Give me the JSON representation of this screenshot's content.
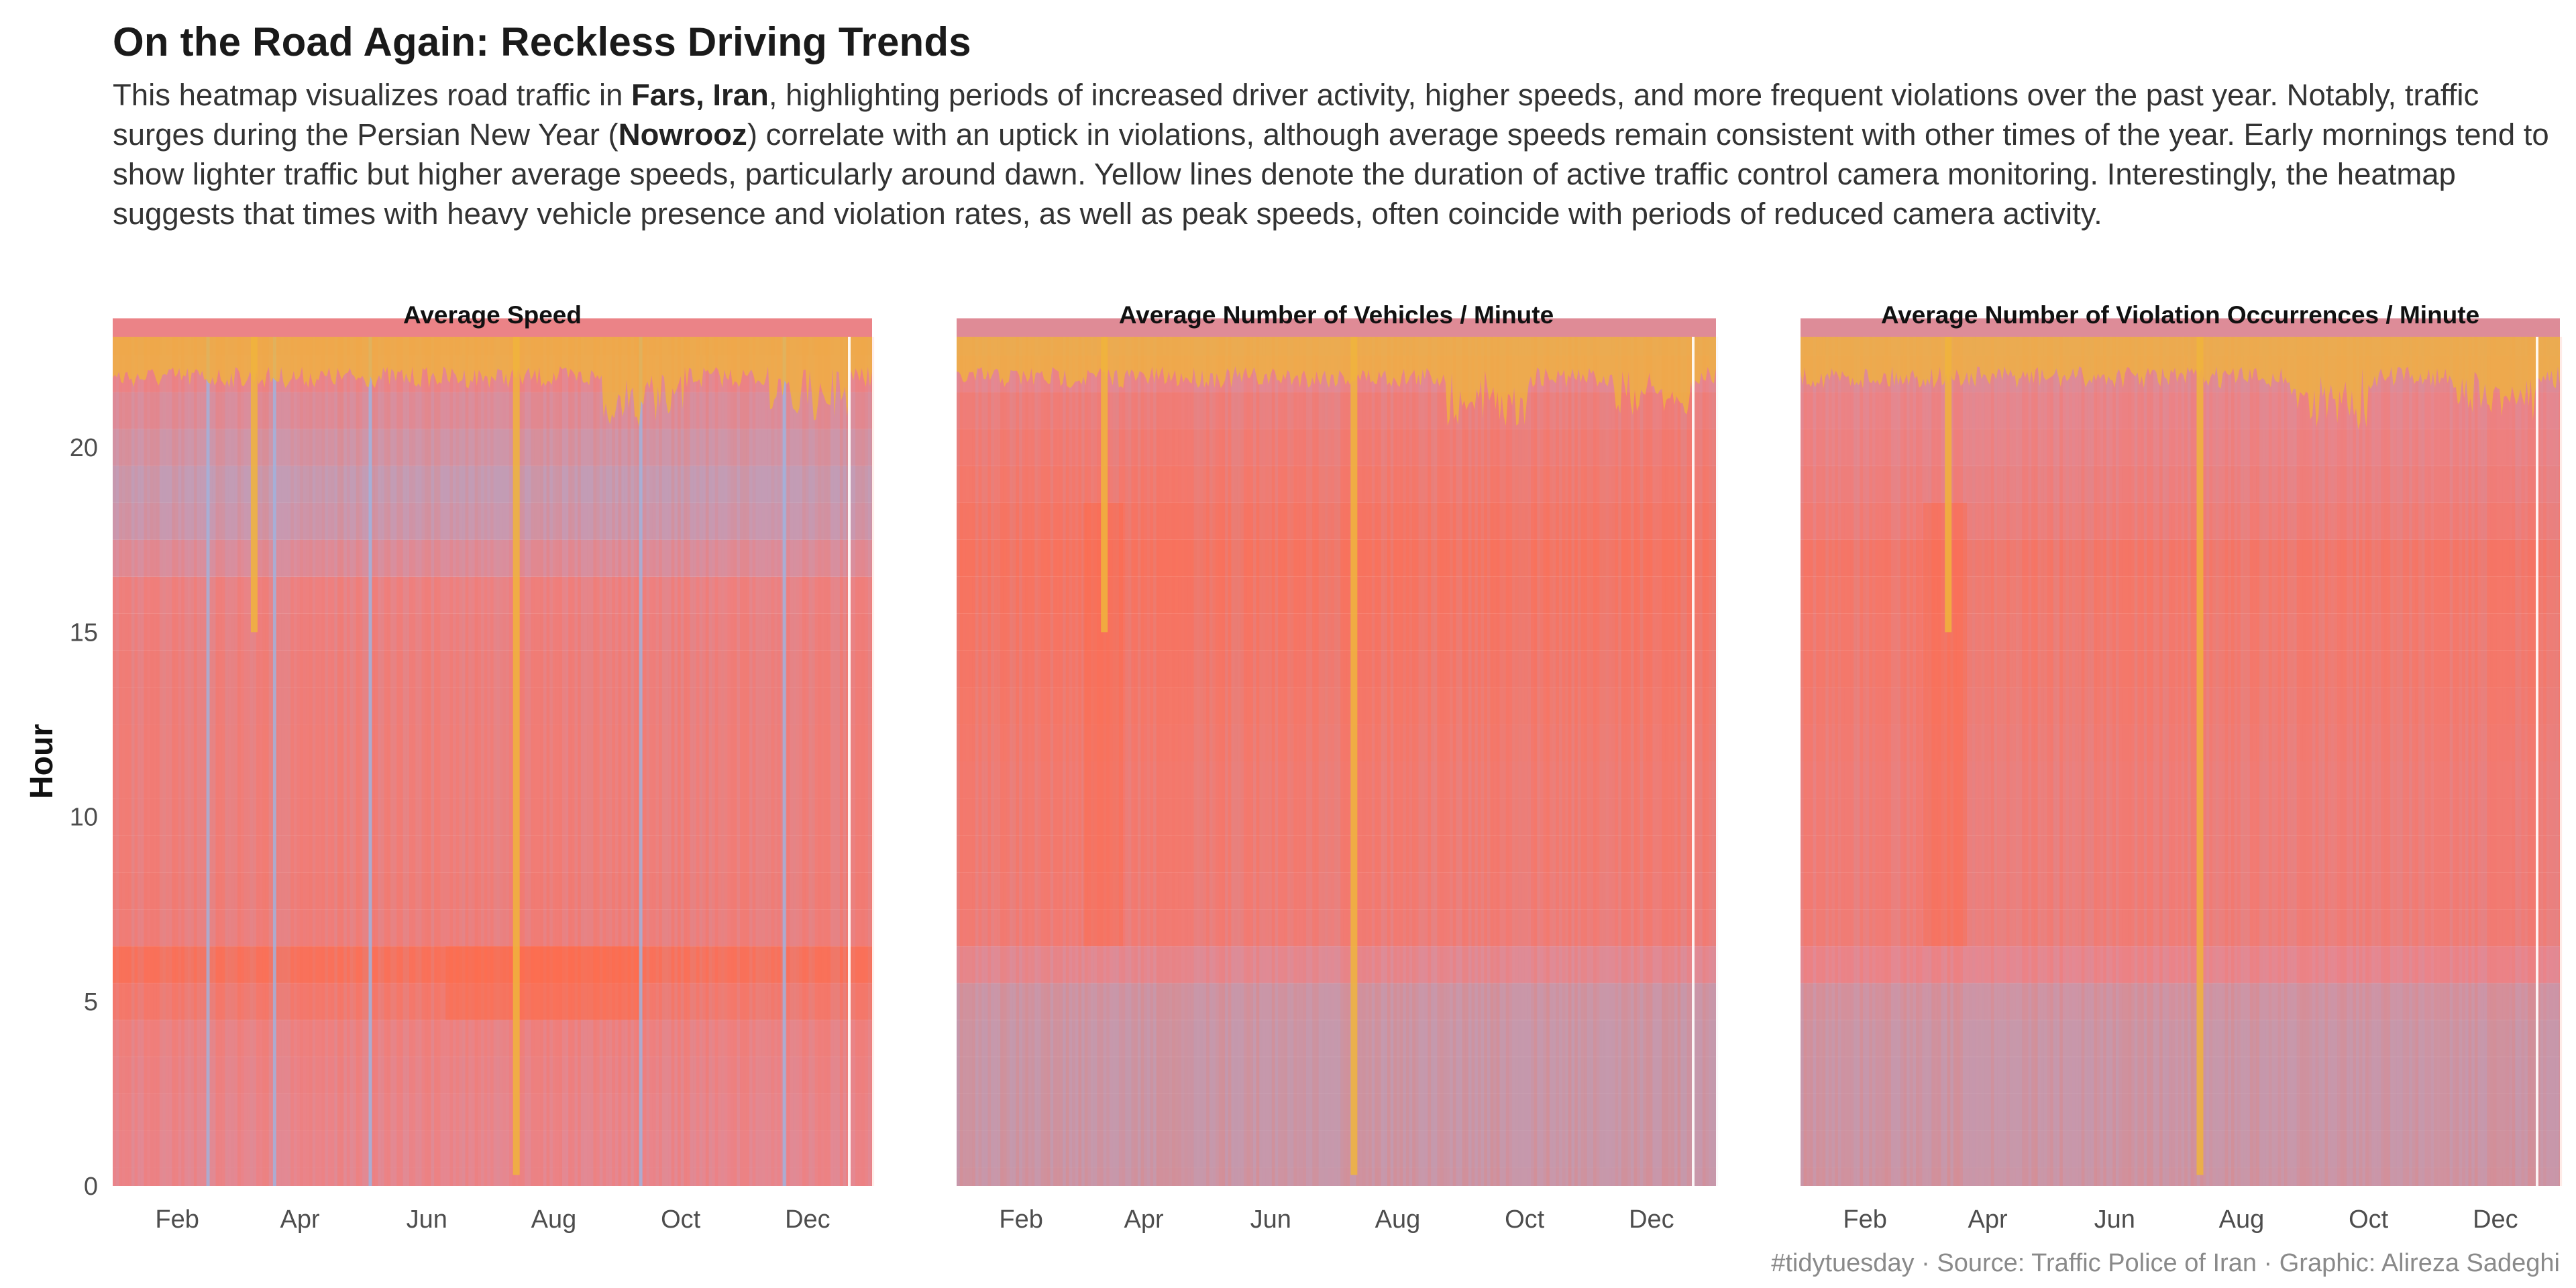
{
  "title": "On the Road Again: Reckless Driving Trends",
  "subtitle": [
    {
      "text": "This heatmap visualizes road traffic in ",
      "bold": false
    },
    {
      "text": "Fars, Iran",
      "bold": true
    },
    {
      "text": ", highlighting periods of increased driver activity, higher speeds, and more frequent violations over the past year. Notably, traffic surges during the Persian New Year (",
      "bold": false
    },
    {
      "text": "Nowrooz",
      "bold": true
    },
    {
      "text": ") correlate with an uptick in violations, although average speeds remain consistent with other times of the year. Early mornings tend to show lighter traffic but higher average speeds, particularly around dawn. Yellow lines denote the duration of active traffic control camera monitoring. Interestingly, the heatmap suggests that times with heavy vehicle presence and violation rates, as well as peak speeds, often coincide with periods of reduced camera activity.",
      "bold": false
    }
  ],
  "caption": "#tidytuesday · Source: Traffic Police of Iran · Graphic: Alireza Sadeghi",
  "colors": {
    "high": "#ff6a48",
    "mid": "#e9868e",
    "low": "#b8a0b8",
    "low_speed": "#9fb4e0",
    "camera": "#f0b43c",
    "axis_text": "#4d4d4d"
  },
  "chart_data": {
    "type": "heatmap",
    "ylabel": "Hour",
    "y_ticks": [
      0,
      5,
      10,
      15,
      20
    ],
    "ylim": [
      0,
      23
    ],
    "x_ticks": [
      "Feb",
      "Apr",
      "Jun",
      "Aug",
      "Oct",
      "Dec"
    ],
    "x_tick_days": [
      46,
      105,
      166,
      227,
      288,
      349
    ],
    "day_range": [
      15,
      380
    ],
    "grid": false,
    "legend": "none",
    "panels": [
      {
        "title": "Average Speed",
        "hour_values": [
          0.5,
          0.5,
          0.52,
          0.55,
          0.58,
          0.72,
          0.86,
          0.62,
          0.64,
          0.63,
          0.63,
          0.63,
          0.63,
          0.62,
          0.62,
          0.6,
          0.58,
          0.42,
          0.3,
          0.26,
          0.34,
          0.42,
          0.5,
          0.55
        ],
        "camera_offline_from_hour": 22.2,
        "camera_outage_dips": [
          {
            "day": 83,
            "down_to_hour": 15.0
          },
          {
            "day": 209,
            "down_to_hour": 0.3
          }
        ],
        "low_value_lines_days": [
          60,
          92,
          138,
          268,
          337
        ],
        "hot_patch": {
          "day_from": 175,
          "day_to": 270,
          "hour_from": 4.5,
          "hour_to": 6.5
        }
      },
      {
        "title": "Average Number of Vehicles / Minute",
        "hour_values": [
          0.18,
          0.16,
          0.15,
          0.15,
          0.16,
          0.2,
          0.45,
          0.66,
          0.68,
          0.7,
          0.7,
          0.7,
          0.72,
          0.74,
          0.76,
          0.78,
          0.8,
          0.82,
          0.78,
          0.72,
          0.68,
          0.62,
          0.5,
          0.4
        ],
        "camera_offline_from_hour": 22.2,
        "camera_outage_dips": [
          {
            "day": 86,
            "down_to_hour": 15.0
          },
          {
            "day": 206,
            "down_to_hour": 0.3
          }
        ],
        "surge": {
          "day_from": 76,
          "day_to": 95,
          "hour_from": 6.5,
          "hour_to": 18.5
        }
      },
      {
        "title": "Average Number of Violation Occurrences / Minute",
        "hour_values": [
          0.2,
          0.18,
          0.17,
          0.17,
          0.18,
          0.24,
          0.5,
          0.64,
          0.66,
          0.66,
          0.66,
          0.66,
          0.68,
          0.7,
          0.72,
          0.72,
          0.74,
          0.76,
          0.66,
          0.6,
          0.56,
          0.52,
          0.44,
          0.38
        ],
        "camera_offline_from_hour": 22.2,
        "camera_outage_dips": [
          {
            "day": 86,
            "down_to_hour": 15.0
          },
          {
            "day": 207,
            "down_to_hour": 0.3
          }
        ],
        "surge": {
          "day_from": 74,
          "day_to": 95,
          "hour_from": 6.5,
          "hour_to": 18.5
        }
      }
    ]
  }
}
